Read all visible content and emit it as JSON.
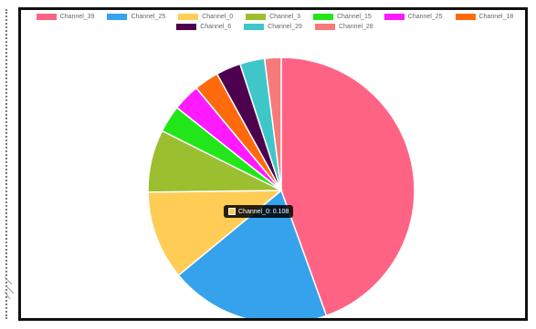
{
  "chart_data": {
    "type": "pie",
    "series": [
      {
        "name": "Channel_39",
        "value": 0.445,
        "color": "#ff6384"
      },
      {
        "name": "Channel_25",
        "value": 0.195,
        "color": "#36a2eb"
      },
      {
        "name": "Channel_0",
        "value": 0.108,
        "color": "#ffcd56"
      },
      {
        "name": "Channel_3",
        "value": 0.076,
        "color": "#9bbf2e"
      },
      {
        "name": "Channel_15",
        "value": 0.033,
        "color": "#22e61a"
      },
      {
        "name": "Channel_25",
        "value": 0.033,
        "color": "#ff1aff"
      },
      {
        "name": "Channel_18",
        "value": 0.03,
        "color": "#ff6a0d"
      },
      {
        "name": "Channel_6",
        "value": 0.03,
        "color": "#4d004d"
      },
      {
        "name": "Channel_29",
        "value": 0.03,
        "color": "#3fc6c9"
      },
      {
        "name": "Channel_28",
        "value": 0.02,
        "color": "#f77a7a"
      }
    ],
    "legend_position": "top",
    "tooltip": {
      "label": "Channel_0: 0.108",
      "color": "#ffcd56"
    }
  }
}
